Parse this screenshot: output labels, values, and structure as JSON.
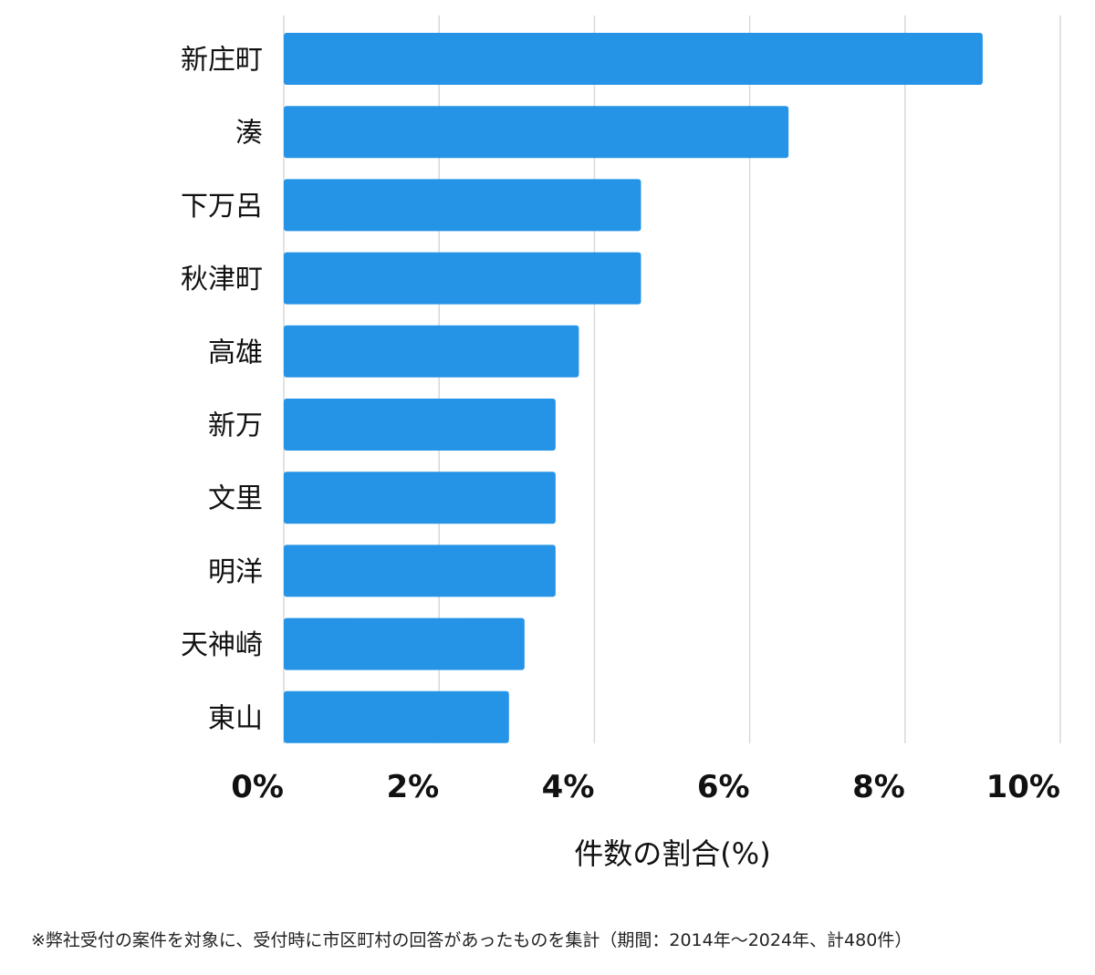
{
  "chart_data": {
    "type": "bar",
    "orientation": "horizontal",
    "categories": [
      "新庄町",
      "湊",
      "下万呂",
      "秋津町",
      "高雄",
      "新万",
      "文里",
      "明洋",
      "天神崎",
      "東山"
    ],
    "values": [
      9.0,
      6.5,
      4.6,
      4.6,
      3.8,
      3.5,
      3.5,
      3.5,
      3.1,
      2.9
    ],
    "xlim": [
      0,
      10
    ],
    "xticks": [
      0,
      2,
      4,
      6,
      8,
      10
    ],
    "xtick_labels": [
      "0%",
      "2%",
      "4%",
      "6%",
      "8%",
      "10%"
    ],
    "xlabel": "件数の割合(%)",
    "ylabel": "",
    "grid": true,
    "bar_color": "#2594e6"
  },
  "footnote": "※弊社受付の案件を対象に、受付時に市区町村の回答があったものを集計（期間：2014年〜2024年、計480件）"
}
